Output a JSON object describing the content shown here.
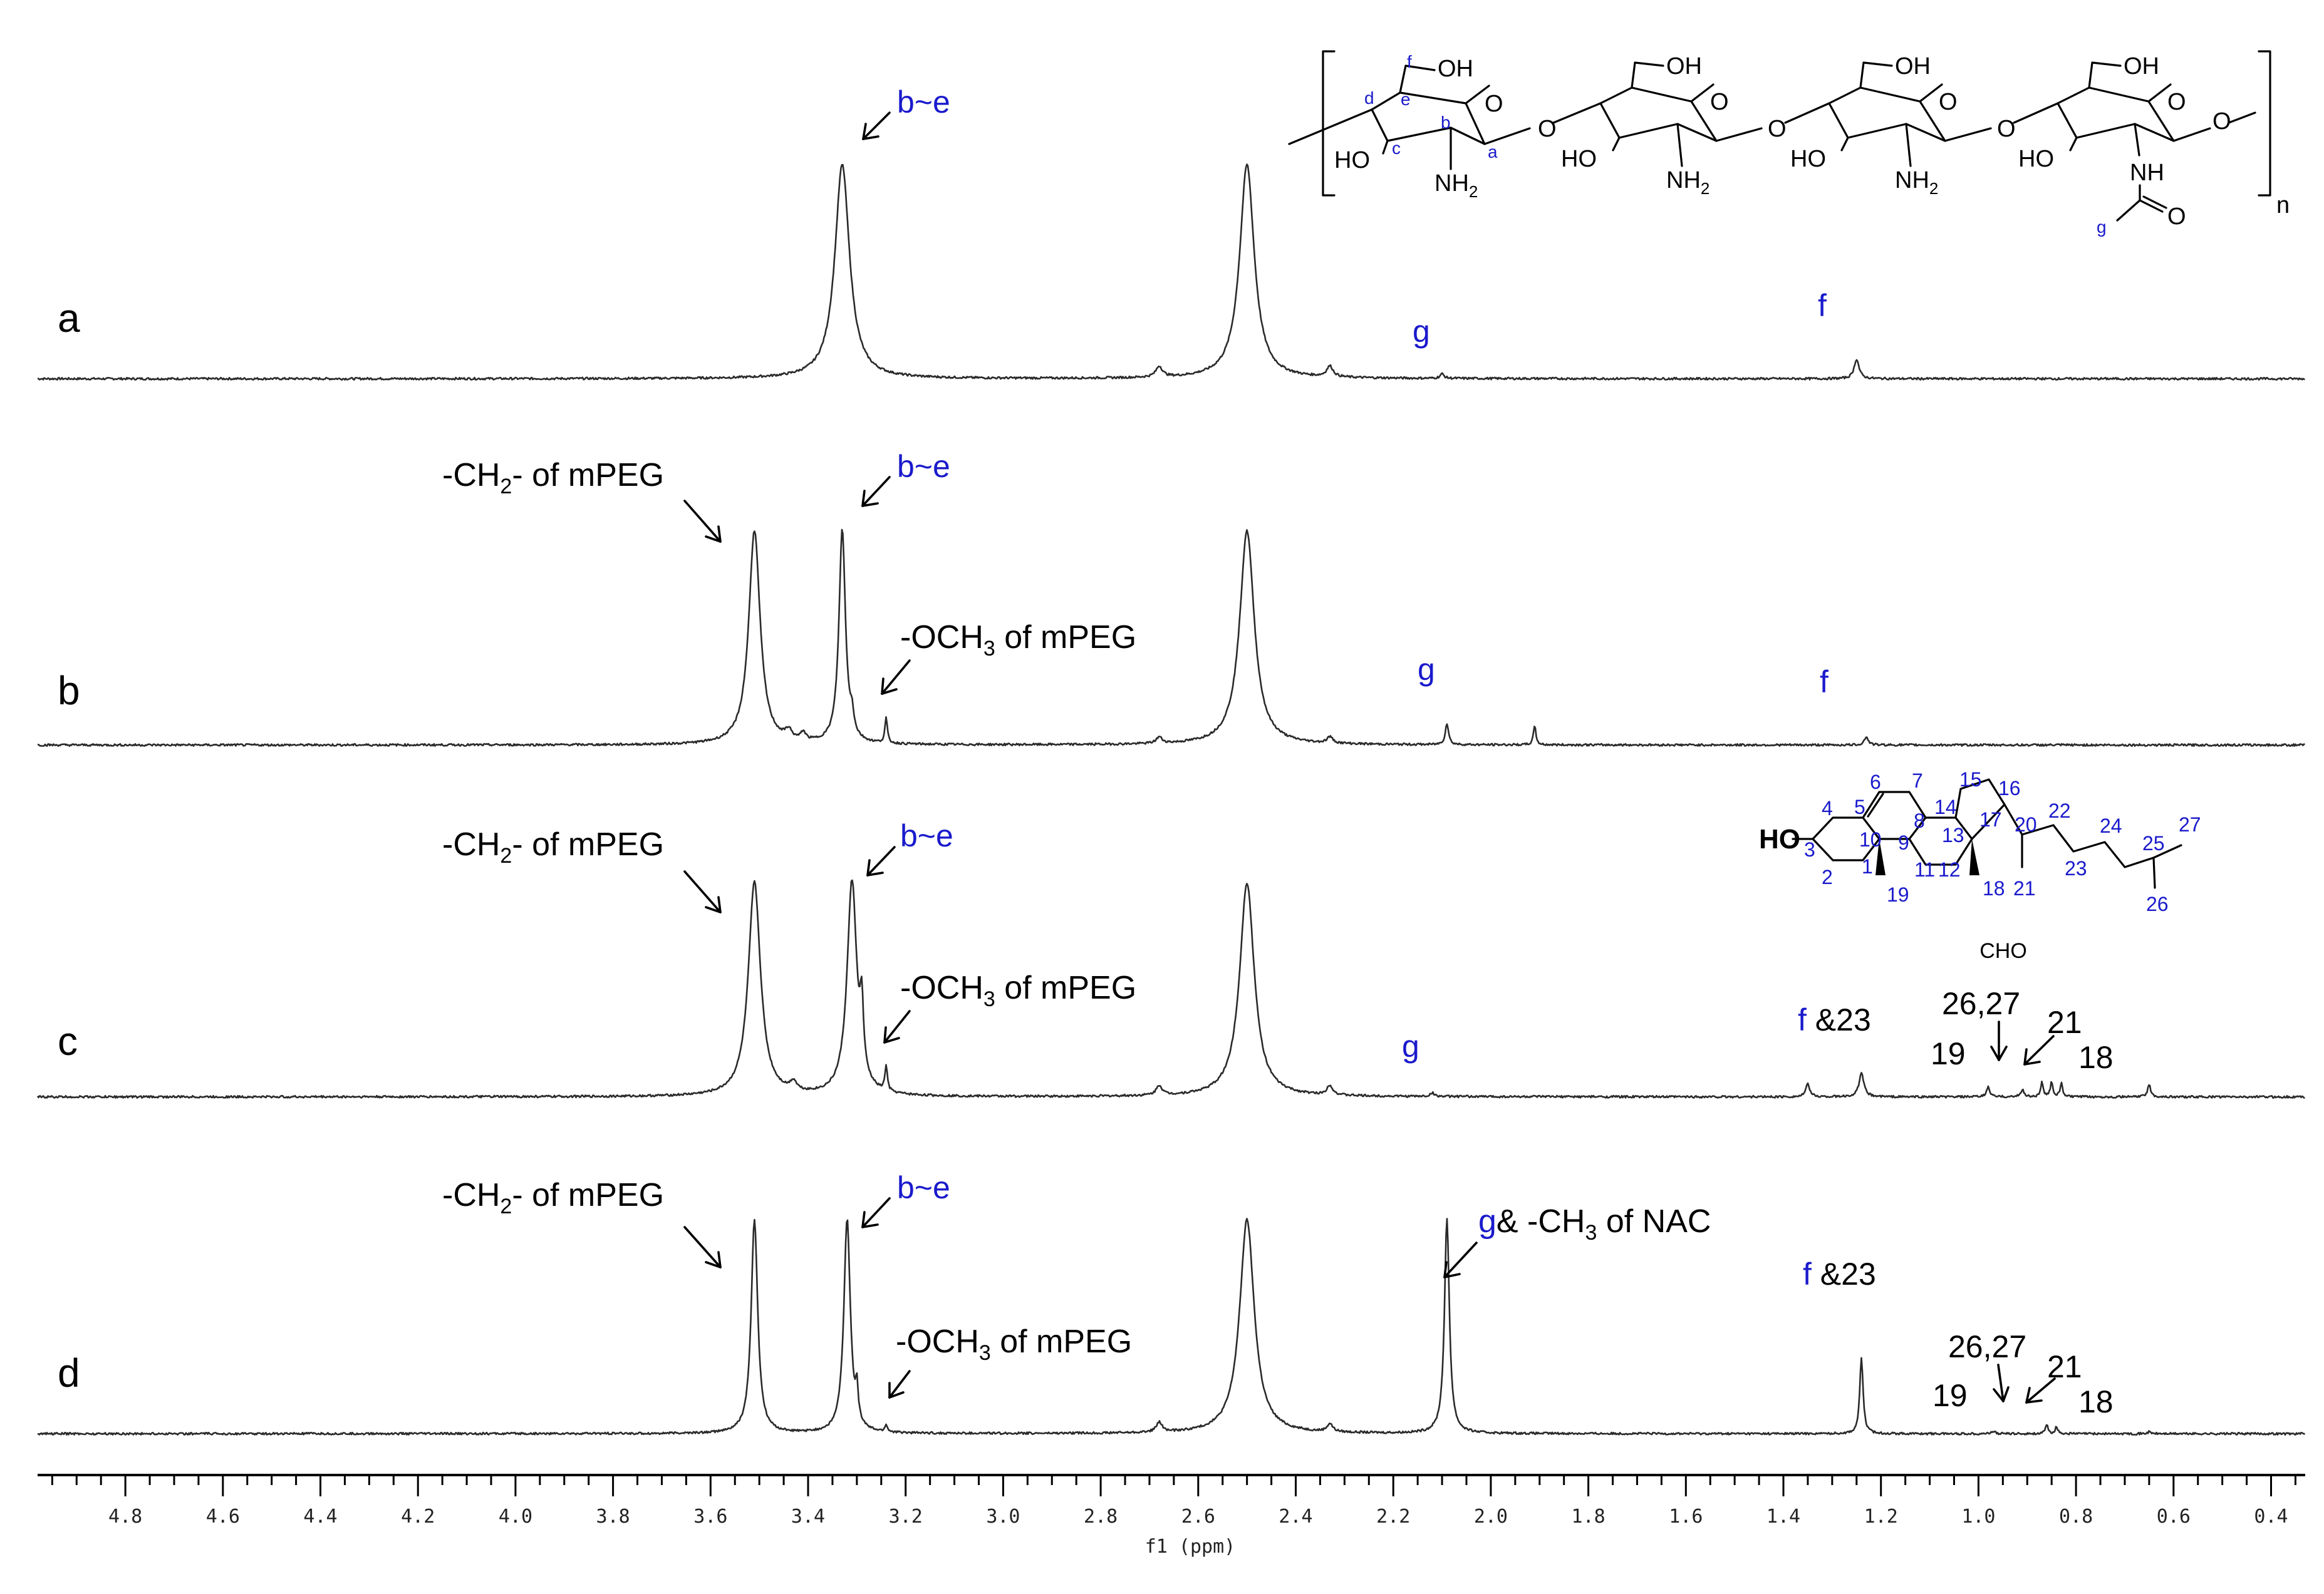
{
  "chart_data": {
    "type": "line",
    "xlabel": "f1 (ppm)",
    "xlim": [
      4.98,
      0.33
    ],
    "x_reversed": true,
    "xticks": [
      4.8,
      4.6,
      4.4,
      4.2,
      4.0,
      3.8,
      3.6,
      3.4,
      3.2,
      3.0,
      2.8,
      2.6,
      2.4,
      2.2,
      2.0,
      1.8,
      1.6,
      1.4,
      1.2,
      1.0,
      0.8,
      0.6,
      0.4
    ],
    "tick_labels": [
      "4.8",
      "4.6",
      "4.4",
      "4.2",
      "4.0",
      "3.8",
      "3.6",
      "3.4",
      "3.2",
      "3.0",
      "2.8",
      "2.6",
      "2.4",
      "2.2",
      "2.0",
      "1.8",
      "1.6",
      "1.4",
      "1.2",
      "1.0",
      "0.8",
      "0.6",
      "0.4"
    ],
    "grid": false,
    "series": [
      {
        "name": "a",
        "peaks": [
          {
            "ppm": 3.33,
            "height": 1.2,
            "width": 0.018,
            "clip": true
          },
          {
            "ppm": 2.5,
            "height": 1.2,
            "width": 0.018,
            "clip": true
          },
          {
            "ppm": 2.68,
            "height": 0.06,
            "width": 0.008
          },
          {
            "ppm": 2.33,
            "height": 0.06,
            "width": 0.008
          },
          {
            "ppm": 2.1,
            "height": 0.025,
            "width": 0.005
          },
          {
            "ppm": 1.25,
            "height": 0.11,
            "width": 0.006
          }
        ],
        "annotations": [
          {
            "text": "b~e",
            "color": "blue",
            "ppm": 3.33
          },
          {
            "text": "g",
            "color": "blue",
            "ppm": 2.1
          },
          {
            "text": "f",
            "color": "blue",
            "ppm": 1.25
          }
        ]
      },
      {
        "name": "b",
        "peaks": [
          {
            "ppm": 3.51,
            "height": 1.2,
            "width": 0.014,
            "clip": true
          },
          {
            "ppm": 3.33,
            "height": 1.2,
            "width": 0.008,
            "clip": true
          },
          {
            "ppm": 2.5,
            "height": 1.2,
            "width": 0.018,
            "clip": true
          },
          {
            "ppm": 3.44,
            "height": 0.05,
            "width": 0.008
          },
          {
            "ppm": 3.41,
            "height": 0.045,
            "width": 0.006
          },
          {
            "ppm": 3.31,
            "height": 0.1,
            "width": 0.004
          },
          {
            "ppm": 3.24,
            "height": 0.14,
            "width": 0.003
          },
          {
            "ppm": 2.68,
            "height": 0.035,
            "width": 0.007
          },
          {
            "ppm": 2.33,
            "height": 0.035,
            "width": 0.007
          },
          {
            "ppm": 2.09,
            "height": 0.12,
            "width": 0.004
          },
          {
            "ppm": 1.91,
            "height": 0.11,
            "width": 0.003
          },
          {
            "ppm": 1.23,
            "height": 0.045,
            "width": 0.005
          }
        ],
        "annotations": [
          {
            "text": "-CH2- of mPEG",
            "color": "black"
          },
          {
            "text": "b~e",
            "color": "blue"
          },
          {
            "text": "-OCH3 of mPEG",
            "color": "black"
          },
          {
            "text": "g",
            "color": "blue"
          },
          {
            "text": "f",
            "color": "blue"
          }
        ]
      },
      {
        "name": "c",
        "peaks": [
          {
            "ppm": 3.51,
            "height": 1.2,
            "width": 0.015,
            "clip": true
          },
          {
            "ppm": 3.31,
            "height": 1.2,
            "width": 0.012,
            "clip": true
          },
          {
            "ppm": 2.5,
            "height": 1.2,
            "width": 0.018,
            "clip": true
          },
          {
            "ppm": 3.29,
            "height": 0.35,
            "width": 0.004
          },
          {
            "ppm": 3.43,
            "height": 0.05,
            "width": 0.008
          },
          {
            "ppm": 3.24,
            "height": 0.14,
            "width": 0.003
          },
          {
            "ppm": 2.68,
            "height": 0.055,
            "width": 0.007
          },
          {
            "ppm": 2.33,
            "height": 0.055,
            "width": 0.007
          },
          {
            "ppm": 2.12,
            "height": 0.02,
            "width": 0.005
          },
          {
            "ppm": 1.35,
            "height": 0.07,
            "width": 0.005
          },
          {
            "ppm": 1.24,
            "height": 0.13,
            "width": 0.006
          },
          {
            "ppm": 0.98,
            "height": 0.055,
            "width": 0.004
          },
          {
            "ppm": 0.91,
            "height": 0.04,
            "width": 0.004
          },
          {
            "ppm": 0.87,
            "height": 0.08,
            "width": 0.003
          },
          {
            "ppm": 0.85,
            "height": 0.085,
            "width": 0.003
          },
          {
            "ppm": 0.83,
            "height": 0.075,
            "width": 0.003
          },
          {
            "ppm": 0.65,
            "height": 0.065,
            "width": 0.004
          }
        ],
        "annotations": [
          {
            "text": "-CH2- of mPEG",
            "color": "black"
          },
          {
            "text": "b~e",
            "color": "blue"
          },
          {
            "text": "-OCH3 of mPEG",
            "color": "black"
          },
          {
            "text": "g",
            "color": "blue"
          },
          {
            "text": "f &23",
            "color": "blue/black"
          },
          {
            "text": "19",
            "color": "black"
          },
          {
            "text": "26,27",
            "color": "black"
          },
          {
            "text": "21",
            "color": "black"
          },
          {
            "text": "18",
            "color": "black"
          }
        ]
      },
      {
        "name": "d",
        "peaks": [
          {
            "ppm": 3.51,
            "height": 1.2,
            "width": 0.008,
            "clip": true
          },
          {
            "ppm": 3.32,
            "height": 1.2,
            "width": 0.008,
            "clip": true
          },
          {
            "ppm": 2.5,
            "height": 1.2,
            "width": 0.018,
            "clip": true
          },
          {
            "ppm": 2.09,
            "height": 1.2,
            "width": 0.006,
            "clip": true
          },
          {
            "ppm": 3.3,
            "height": 0.18,
            "width": 0.003
          },
          {
            "ppm": 3.24,
            "height": 0.04,
            "width": 0.003
          },
          {
            "ppm": 2.68,
            "height": 0.055,
            "width": 0.007
          },
          {
            "ppm": 2.33,
            "height": 0.045,
            "width": 0.007
          },
          {
            "ppm": 1.24,
            "height": 0.43,
            "width": 0.004
          },
          {
            "ppm": 0.97,
            "height": 0.015,
            "width": 0.004
          },
          {
            "ppm": 0.86,
            "height": 0.05,
            "width": 0.003
          },
          {
            "ppm": 0.84,
            "height": 0.04,
            "width": 0.003
          },
          {
            "ppm": 0.65,
            "height": 0.01,
            "width": 0.004
          }
        ],
        "annotations": [
          {
            "text": "-CH2- of mPEG",
            "color": "black"
          },
          {
            "text": "b~e",
            "color": "blue"
          },
          {
            "text": "g& -CH3 of NAC",
            "color": "blue/black"
          },
          {
            "text": "-OCH3 of mPEG",
            "color": "black"
          },
          {
            "text": "f &23",
            "color": "blue/black"
          },
          {
            "text": "19",
            "color": "black"
          },
          {
            "text": "26,27",
            "color": "black"
          },
          {
            "text": "21",
            "color": "black"
          },
          {
            "text": "18",
            "color": "black"
          }
        ]
      }
    ]
  },
  "labels": {
    "spectrum_a": "a",
    "spectrum_b": "b",
    "spectrum_c": "c",
    "spectrum_d": "d",
    "b_e": "b~e",
    "g": "g",
    "f": "f",
    "ch2_prefix": "-CH",
    "ch2_sub": "2",
    "ch2_suffix": "- of mPEG",
    "och3_prefix": "-OCH",
    "och3_sub": "3",
    "och3_suffix": " of mPEG",
    "f23_suffix": " &23",
    "nac_prefix": "& -CH",
    "nac_sub": "3",
    "nac_suffix": " of NAC",
    "p19": "19",
    "p2627": "26,27",
    "p21": "21",
    "p18": "18"
  },
  "chitosan_structure": {
    "oh": "OH",
    "ho": "HO",
    "nh": "NH",
    "nh2_prefix": "NH",
    "nh2_sub": "2",
    "o": "O",
    "n": "n",
    "pos_a": "a",
    "pos_b": "b",
    "pos_c": "c",
    "pos_d": "d",
    "pos_e": "e",
    "pos_f": "f",
    "pos_g": "g"
  },
  "cholesterol_structure": {
    "ho": "HO",
    "name": "CHO",
    "numbers": [
      "1",
      "2",
      "3",
      "4",
      "5",
      "6",
      "7",
      "8",
      "9",
      "10",
      "11",
      "12",
      "13",
      "14",
      "15",
      "16",
      "17",
      "18",
      "19",
      "20",
      "21",
      "22",
      "23",
      "24",
      "25",
      "26",
      "27"
    ]
  }
}
